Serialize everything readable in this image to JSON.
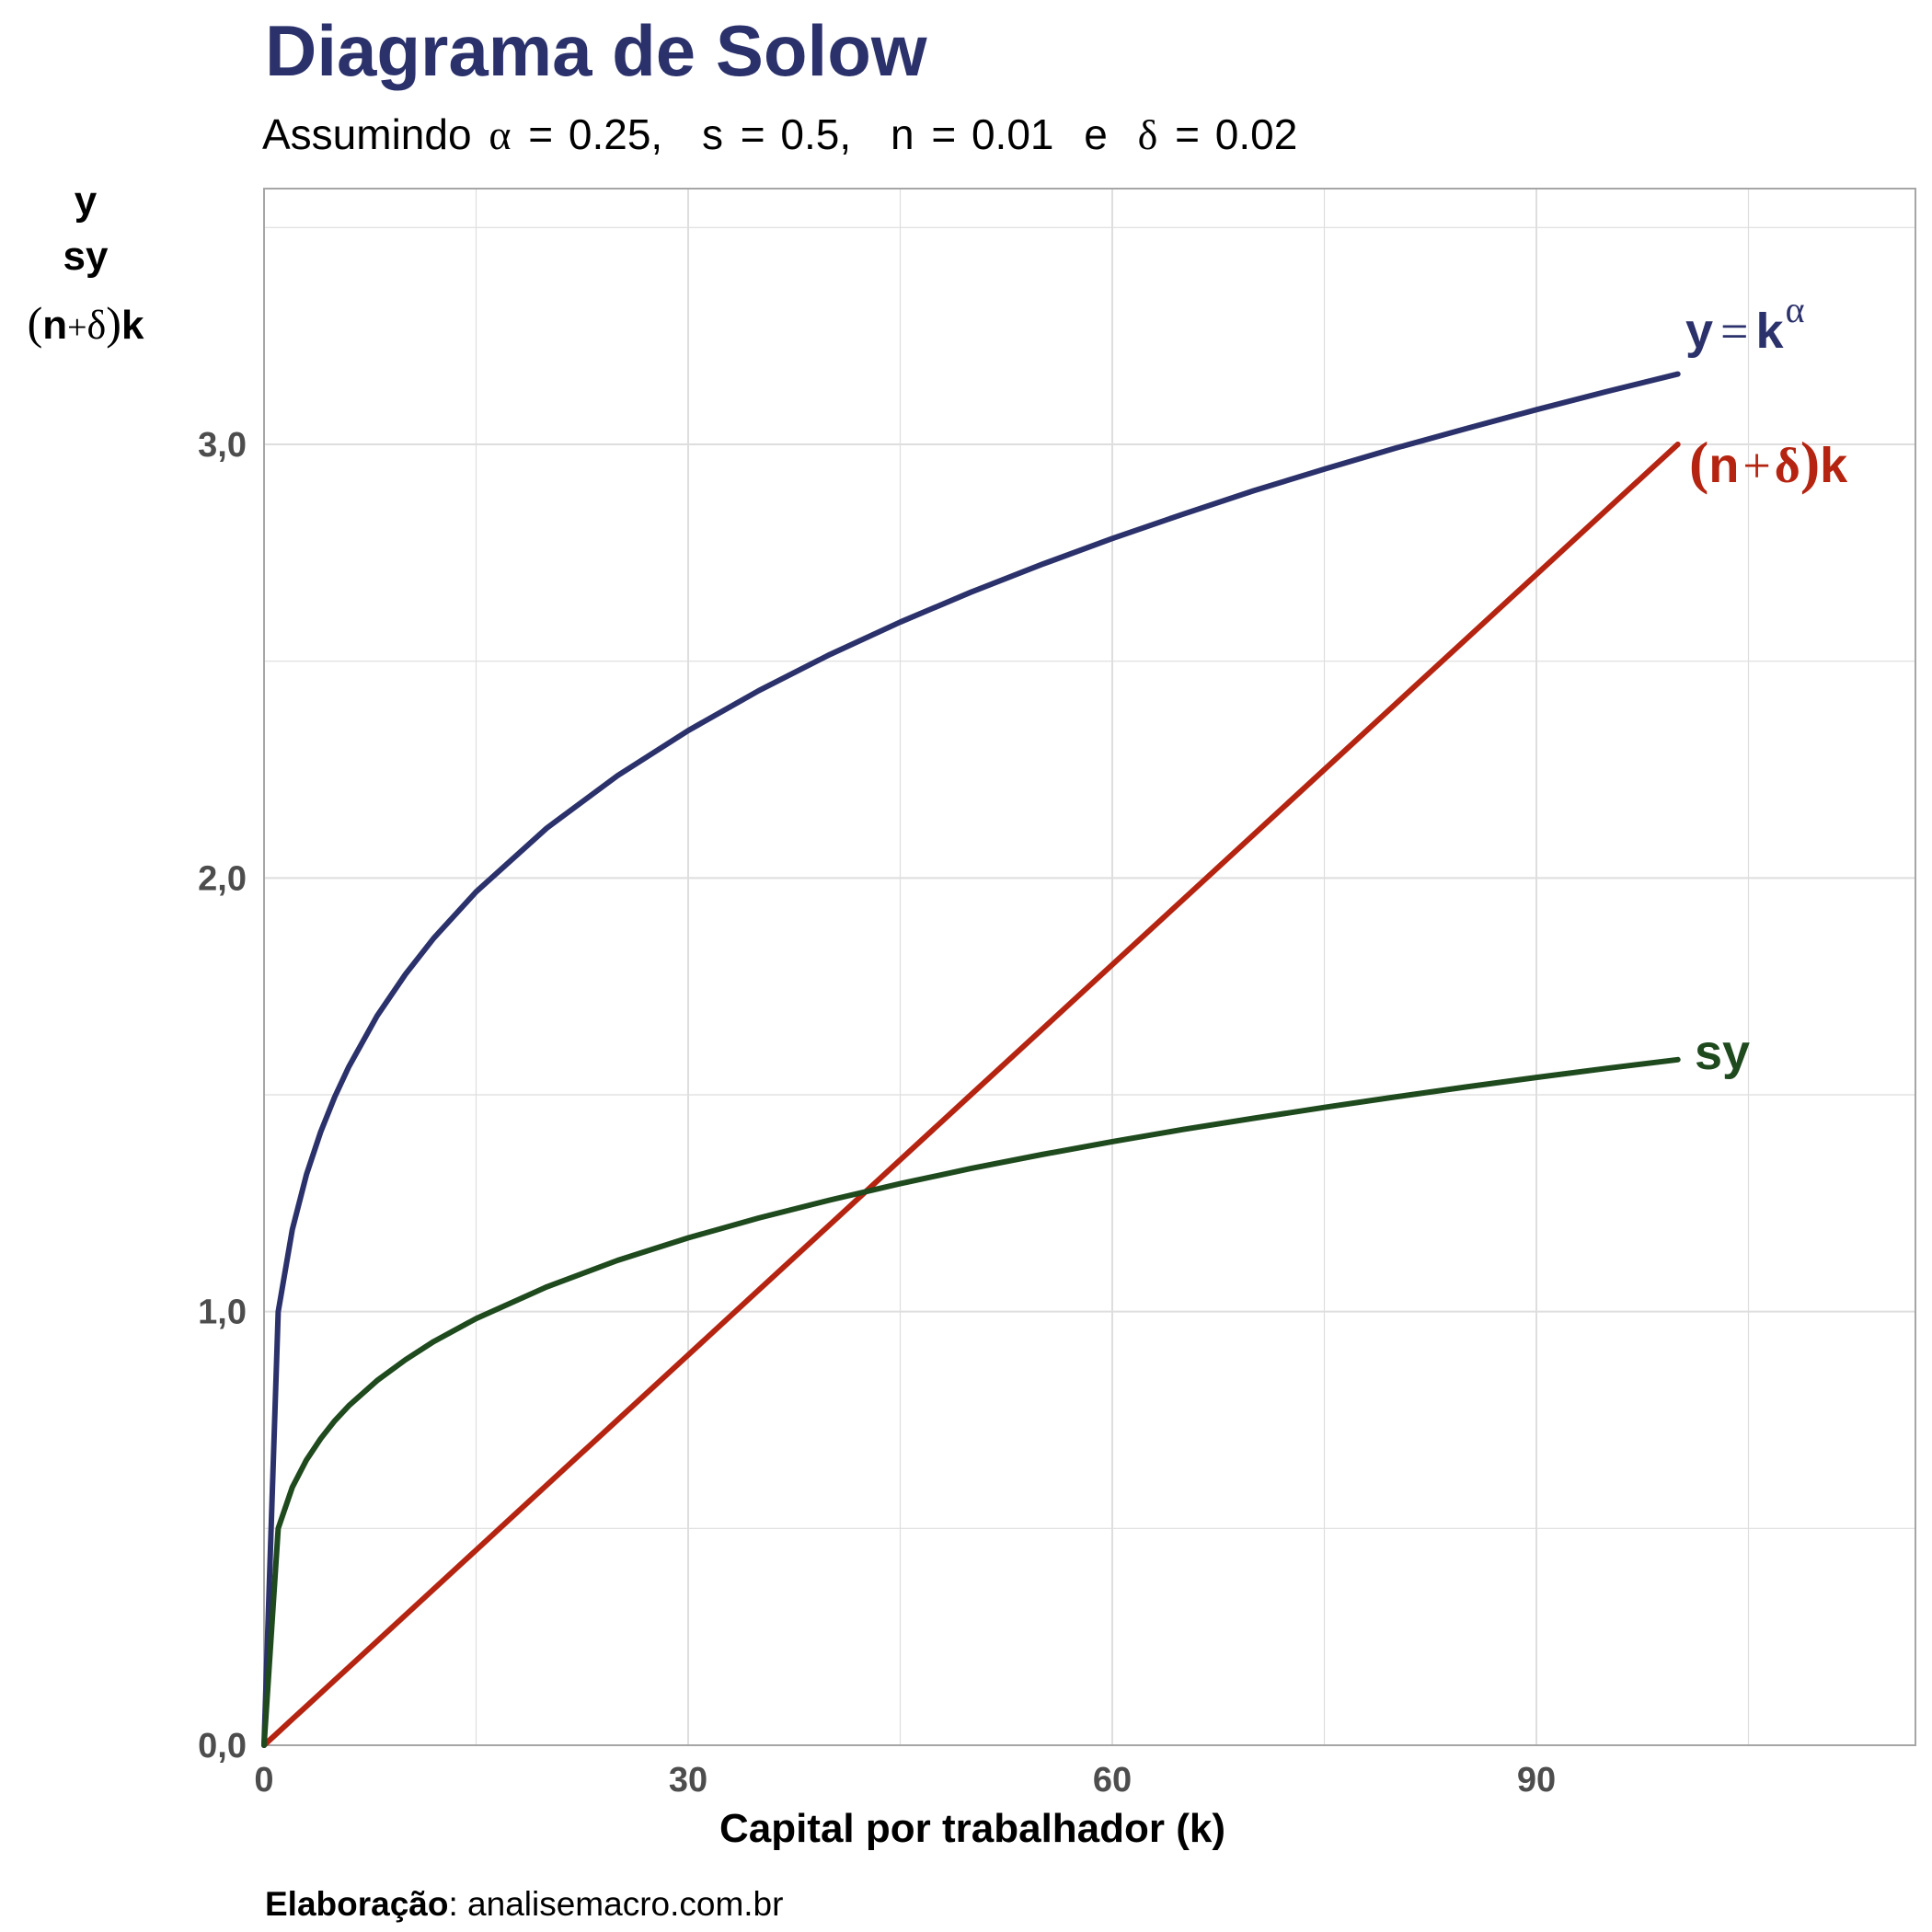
{
  "title": "Diagrama de Solow",
  "subtitle": {
    "prefix": "Assumindo",
    "alpha_sym": "α",
    "alpha_val": "0.25,",
    "s_sym": "s",
    "s_val": "0.5,",
    "n_sym": "n",
    "n_val": "0.01",
    "conj": "e",
    "delta_sym": "δ",
    "delta_val": "0.02",
    "eq": "="
  },
  "y_axis_label": {
    "line1": "y",
    "line2": "sy",
    "line3_open": "(",
    "line3_n": "n",
    "line3_plus": "+",
    "line3_delta": "δ",
    "line3_close": ")",
    "line3_k": "k"
  },
  "x_axis_label": "Capital por trabalhador (k)",
  "caption": {
    "bold": "Elaboração",
    "rest": ": analisemacro.com.br"
  },
  "series_labels": {
    "y": {
      "y": "y",
      "eq": "=",
      "k": "k",
      "exp": "α"
    },
    "dep": {
      "open": "(",
      "n": "n",
      "plus": "+",
      "delta": "δ",
      "close": ")",
      "k": "k"
    },
    "sy": "sy"
  },
  "colors": {
    "y": "#2b316b",
    "dep": "#b52410",
    "sy": "#1e4a1e",
    "grid": "#dedede",
    "axis": "#a6a6a6"
  },
  "chart_data": {
    "type": "line",
    "title": "Diagrama de Solow",
    "xlabel": "Capital por trabalhador (k)",
    "ylabel": "y / sy / (n+δ)k",
    "xlim": [
      0,
      115
    ],
    "ylim": [
      0,
      3.6
    ],
    "x_ticks": [
      0,
      30,
      60,
      90
    ],
    "x_tick_labels": [
      "0",
      "30",
      "60",
      "90"
    ],
    "y_ticks": [
      0,
      1,
      2,
      3
    ],
    "y_tick_labels": [
      "0,0",
      "1,0",
      "2,0",
      "3,0"
    ],
    "grid": true,
    "x": [
      0,
      1,
      2,
      3,
      4,
      5,
      6,
      8,
      10,
      12,
      15,
      20,
      25,
      30,
      35,
      40,
      45,
      50,
      55,
      60,
      65,
      70,
      75,
      80,
      85,
      90,
      95,
      100
    ],
    "series": [
      {
        "key": "y",
        "values": [
          0,
          1.0,
          1.189,
          1.316,
          1.414,
          1.495,
          1.565,
          1.682,
          1.778,
          1.861,
          1.968,
          2.115,
          2.236,
          2.34,
          2.432,
          2.515,
          2.59,
          2.659,
          2.723,
          2.783,
          2.839,
          2.893,
          2.943,
          2.991,
          3.036,
          3.08,
          3.122,
          3.162
        ]
      },
      {
        "key": "sy",
        "values": [
          0,
          0.5,
          0.595,
          0.658,
          0.707,
          0.748,
          0.783,
          0.841,
          0.889,
          0.931,
          0.984,
          1.057,
          1.118,
          1.17,
          1.216,
          1.257,
          1.295,
          1.33,
          1.362,
          1.392,
          1.42,
          1.446,
          1.471,
          1.495,
          1.518,
          1.54,
          1.561,
          1.581
        ]
      },
      {
        "key": "dep",
        "values": [
          0,
          0.03,
          0.06,
          0.09,
          0.12,
          0.15,
          0.18,
          0.24,
          0.3,
          0.36,
          0.45,
          0.6,
          0.75,
          0.9,
          1.05,
          1.2,
          1.35,
          1.5,
          1.65,
          1.8,
          1.95,
          2.1,
          2.25,
          2.4,
          2.55,
          2.7,
          2.85,
          3.0
        ]
      }
    ]
  }
}
